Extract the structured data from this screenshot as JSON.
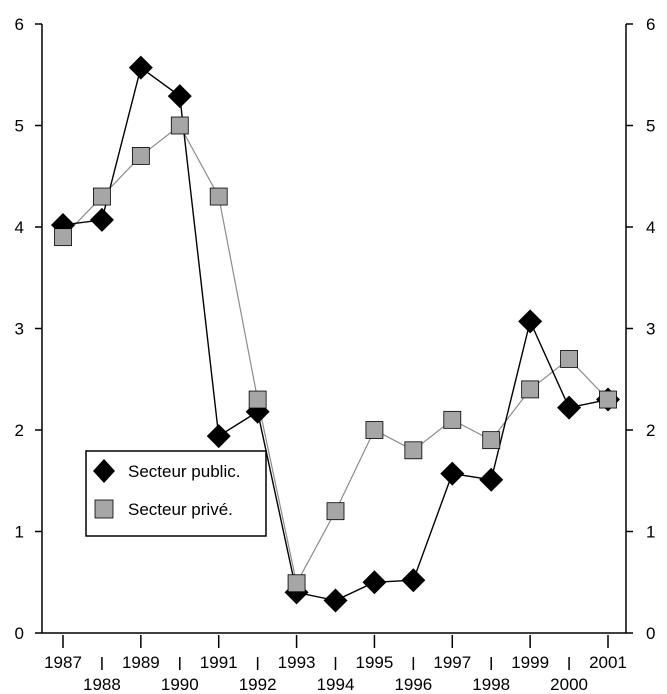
{
  "chart_data": {
    "type": "line",
    "x": [
      1987,
      1988,
      1989,
      1990,
      1991,
      1992,
      1993,
      1994,
      1995,
      1996,
      1997,
      1998,
      1999,
      2000,
      2001
    ],
    "x_tick_labels": [
      "1987",
      "1988",
      "1989",
      "1990",
      "1991",
      "1992",
      "1993",
      "1994",
      "1995",
      "1996",
      "1997",
      "1998",
      "1999",
      "2000",
      "2001"
    ],
    "ylim": [
      0,
      6
    ],
    "y_ticks": [
      0,
      1,
      2,
      3,
      4,
      5,
      6
    ],
    "y_tick_labels": [
      "0",
      "1",
      "2",
      "3",
      "4",
      "5",
      "6"
    ],
    "grid": false,
    "legend_position": "bottom-left",
    "series": [
      {
        "name": "Secteur public.",
        "marker": "diamond",
        "color": "#000000",
        "line_color": "#000000",
        "values": [
          4.02,
          4.07,
          5.57,
          5.29,
          1.94,
          2.18,
          0.4,
          0.32,
          0.5,
          0.52,
          1.57,
          1.51,
          3.07,
          2.22,
          2.3
        ]
      },
      {
        "name": "Secteur privé.",
        "marker": "square",
        "color": "#a6a6a6",
        "line_color": "#8c8c8c",
        "values": [
          3.9,
          4.3,
          4.7,
          5.0,
          4.3,
          2.3,
          0.49,
          1.2,
          2.0,
          1.8,
          2.1,
          1.9,
          2.4,
          2.7,
          2.3
        ]
      }
    ]
  }
}
